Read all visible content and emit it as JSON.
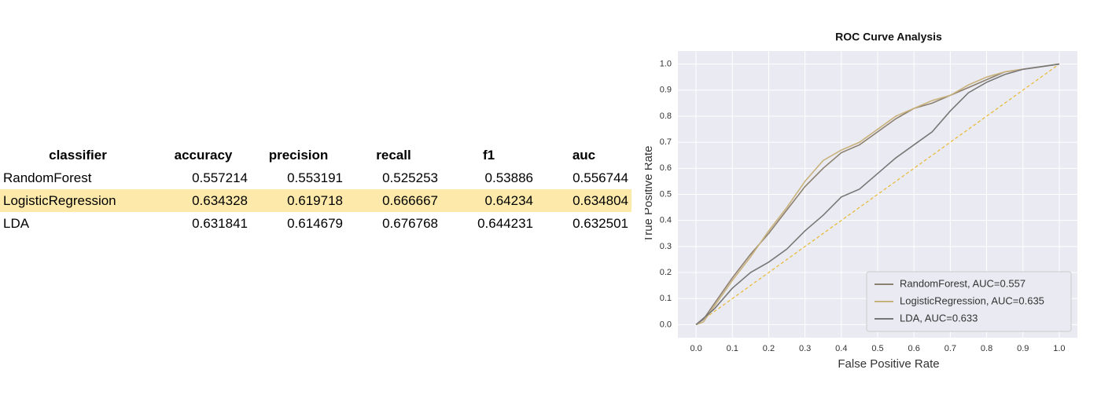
{
  "table": {
    "columns": [
      "classifier",
      "accuracy",
      "precision",
      "recall",
      "f1",
      "auc"
    ],
    "rows": [
      [
        "RandomForest",
        "0.557214",
        "0.553191",
        "0.525253",
        "0.53886",
        "0.556744"
      ],
      [
        "LogisticRegression",
        "0.634328",
        "0.619718",
        "0.666667",
        "0.64234",
        "0.634804"
      ],
      [
        "LDA",
        "0.631841",
        "0.614679",
        "0.676768",
        "0.644231",
        "0.632501"
      ]
    ],
    "highlighted_row": 1
  },
  "chart_data": {
    "type": "line",
    "title": "ROC Curve Analysis",
    "x_label": "False Positive Rate",
    "y_label": "True Positive Rate",
    "xlim": [
      -0.05,
      1.05
    ],
    "ylim": [
      -0.05,
      1.05
    ],
    "xticks": [
      {
        "value": 0,
        "label": "0.0"
      },
      {
        "value": 0.1,
        "label": "0.1"
      },
      {
        "value": 0.2,
        "label": "0.2"
      },
      {
        "value": 0.3,
        "label": "0.3"
      },
      {
        "value": 0.4,
        "label": "0.4"
      },
      {
        "value": 0.5,
        "label": "0.5"
      },
      {
        "value": 0.6,
        "label": "0.6"
      },
      {
        "value": 0.7,
        "label": "0.7"
      },
      {
        "value": 0.8,
        "label": "0.8"
      },
      {
        "value": 0.9,
        "label": "0.9"
      },
      {
        "value": 1,
        "label": "1.0"
      }
    ],
    "yticks": [
      {
        "value": 0,
        "label": "0.0"
      },
      {
        "value": 0.1,
        "label": "0.1"
      },
      {
        "value": 0.2,
        "label": "0.2"
      },
      {
        "value": 0.3,
        "label": "0.3"
      },
      {
        "value": 0.4,
        "label": "0.4"
      },
      {
        "value": 0.5,
        "label": "0.5"
      },
      {
        "value": 0.6,
        "label": "0.6"
      },
      {
        "value": 0.7,
        "label": "0.7"
      },
      {
        "value": 0.8,
        "label": "0.8"
      },
      {
        "value": 0.9,
        "label": "0.9"
      },
      {
        "value": 1,
        "label": "1.0"
      }
    ],
    "grid": true,
    "legend": "lower right",
    "series": [
      {
        "name": "RandomForest, AUC=0.557",
        "color": "#8c8070",
        "x": [
          0,
          0.02,
          0.05,
          0.1,
          0.15,
          0.2,
          0.25,
          0.3,
          0.35,
          0.4,
          0.45,
          0.5,
          0.55,
          0.6,
          0.65,
          0.7,
          0.75,
          0.8,
          0.85,
          0.9,
          0.95,
          1
        ],
        "values": [
          0,
          0.02,
          0.08,
          0.18,
          0.27,
          0.35,
          0.44,
          0.53,
          0.6,
          0.66,
          0.69,
          0.74,
          0.79,
          0.83,
          0.85,
          0.88,
          0.91,
          0.94,
          0.97,
          0.98,
          0.99,
          1
        ]
      },
      {
        "name": "LogisticRegression, AUC=0.635",
        "color": "#c9b27c",
        "x": [
          0,
          0.02,
          0.05,
          0.1,
          0.15,
          0.2,
          0.25,
          0.3,
          0.35,
          0.4,
          0.45,
          0.5,
          0.55,
          0.6,
          0.65,
          0.7,
          0.75,
          0.8,
          0.85,
          0.9,
          0.95,
          1
        ],
        "values": [
          0,
          0.01,
          0.07,
          0.17,
          0.26,
          0.36,
          0.45,
          0.55,
          0.63,
          0.67,
          0.7,
          0.75,
          0.8,
          0.83,
          0.86,
          0.88,
          0.92,
          0.95,
          0.97,
          0.98,
          0.99,
          1
        ]
      },
      {
        "name": "LDA, AUC=0.633",
        "color": "#777777",
        "x": [
          0,
          0.05,
          0.1,
          0.15,
          0.2,
          0.25,
          0.3,
          0.35,
          0.4,
          0.45,
          0.5,
          0.55,
          0.6,
          0.65,
          0.7,
          0.75,
          0.8,
          0.85,
          0.9,
          0.95,
          1
        ],
        "values": [
          0,
          0.06,
          0.14,
          0.2,
          0.24,
          0.29,
          0.36,
          0.42,
          0.49,
          0.52,
          0.58,
          0.64,
          0.69,
          0.74,
          0.82,
          0.89,
          0.93,
          0.96,
          0.98,
          0.99,
          1
        ]
      }
    ],
    "diagonal": {
      "x": [
        0,
        1
      ],
      "values": [
        0,
        1
      ],
      "color": "#e8b830"
    }
  }
}
